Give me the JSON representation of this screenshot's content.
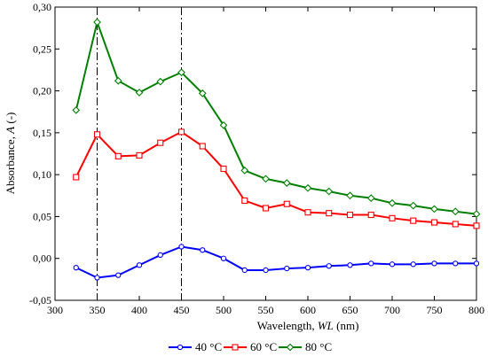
{
  "chart_data": {
    "type": "line",
    "xlabel": "Wavelength,",
    "xlabel_var": "WL",
    "xlabel_unit": "(nm)",
    "ylabel": "Absorbance,",
    "ylabel_var": "A",
    "ylabel_unit": "(-)",
    "xlim": [
      300,
      800
    ],
    "ylim": [
      -0.05,
      0.3
    ],
    "xticks": [
      300,
      350,
      400,
      450,
      500,
      550,
      600,
      650,
      700,
      750,
      800
    ],
    "yticks": [
      -0.05,
      0.0,
      0.05,
      0.1,
      0.15,
      0.2,
      0.25,
      0.3
    ],
    "ytick_labels": [
      "-0,05",
      "0,00",
      "0,05",
      "0,10",
      "0,15",
      "0,20",
      "0,25",
      "0,30"
    ],
    "xtick_labels": [
      "300",
      "350",
      "400",
      "450",
      "500",
      "550",
      "600",
      "650",
      "700",
      "750",
      "800"
    ],
    "vlines": [
      350,
      450
    ],
    "grid": false,
    "legend_position": "bottom",
    "x": [
      325,
      350,
      375,
      400,
      425,
      450,
      475,
      500,
      525,
      550,
      575,
      600,
      625,
      650,
      675,
      700,
      725,
      750,
      775,
      800
    ],
    "series": [
      {
        "name": "40 °C",
        "color": "#0000ff",
        "marker": "circle",
        "values": [
          -0.011,
          -0.023,
          -0.02,
          -0.008,
          0.004,
          0.014,
          0.01,
          0.0,
          -0.014,
          -0.014,
          -0.012,
          -0.011,
          -0.009,
          -0.008,
          -0.006,
          -0.007,
          -0.007,
          -0.006,
          -0.006,
          -0.006
        ]
      },
      {
        "name": "60 °C",
        "color": "#ff0000",
        "marker": "square",
        "values": [
          0.097,
          0.148,
          0.122,
          0.123,
          0.138,
          0.151,
          0.134,
          0.107,
          0.069,
          0.06,
          0.065,
          0.055,
          0.054,
          0.052,
          0.052,
          0.048,
          0.045,
          0.043,
          0.041,
          0.039
        ]
      },
      {
        "name": "80 °C",
        "color": "#008000",
        "marker": "diamond",
        "values": [
          0.177,
          0.282,
          0.212,
          0.198,
          0.211,
          0.222,
          0.197,
          0.159,
          0.105,
          0.095,
          0.09,
          0.084,
          0.08,
          0.075,
          0.072,
          0.066,
          0.063,
          0.059,
          0.056,
          0.053
        ]
      }
    ]
  }
}
